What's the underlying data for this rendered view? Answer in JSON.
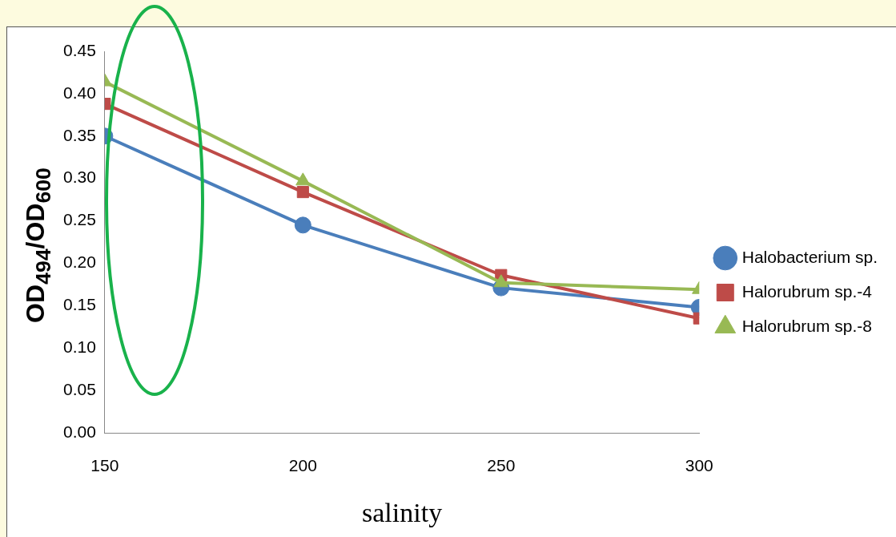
{
  "chart_data": {
    "type": "line",
    "xlabel": "salinity",
    "ylabel": "OD$_{494}$/OD$_{600}$",
    "x": [
      150,
      200,
      250,
      300
    ],
    "xlim": [
      150,
      300
    ],
    "xticks": [
      150,
      200,
      250,
      300
    ],
    "ylim": [
      0,
      0.45
    ],
    "yticks": [
      {
        "value": 0,
        "label": "0.00"
      },
      {
        "value": 0.05,
        "label": "0.05"
      },
      {
        "value": 0.1,
        "label": "0.10"
      },
      {
        "value": 0.15,
        "label": "0.15"
      },
      {
        "value": 0.2,
        "label": "0.20"
      },
      {
        "value": 0.25,
        "label": "0.25"
      },
      {
        "value": 0.3,
        "label": "0.30"
      },
      {
        "value": 0.35,
        "label": "0.35"
      },
      {
        "value": 0.4,
        "label": "0.40"
      },
      {
        "value": 0.45,
        "label": "0.45"
      }
    ],
    "grid": false,
    "legend": "right",
    "line_style": "solid",
    "series": [
      {
        "name": "Halobacterium sp.",
        "color": "#4a7ebb",
        "marker": "circle",
        "values": [
          0.35,
          0.245,
          0.171,
          0.148
        ]
      },
      {
        "name": "Halorubrum sp.-4",
        "color": "#be4b48",
        "marker": "square",
        "values": [
          0.388,
          0.284,
          0.186,
          0.135
        ]
      },
      {
        "name": "Halorubrum sp.-8",
        "color": "#98b954",
        "marker": "triangle",
        "values": [
          0.414,
          0.297,
          0.177,
          0.169
        ]
      }
    ]
  }
}
